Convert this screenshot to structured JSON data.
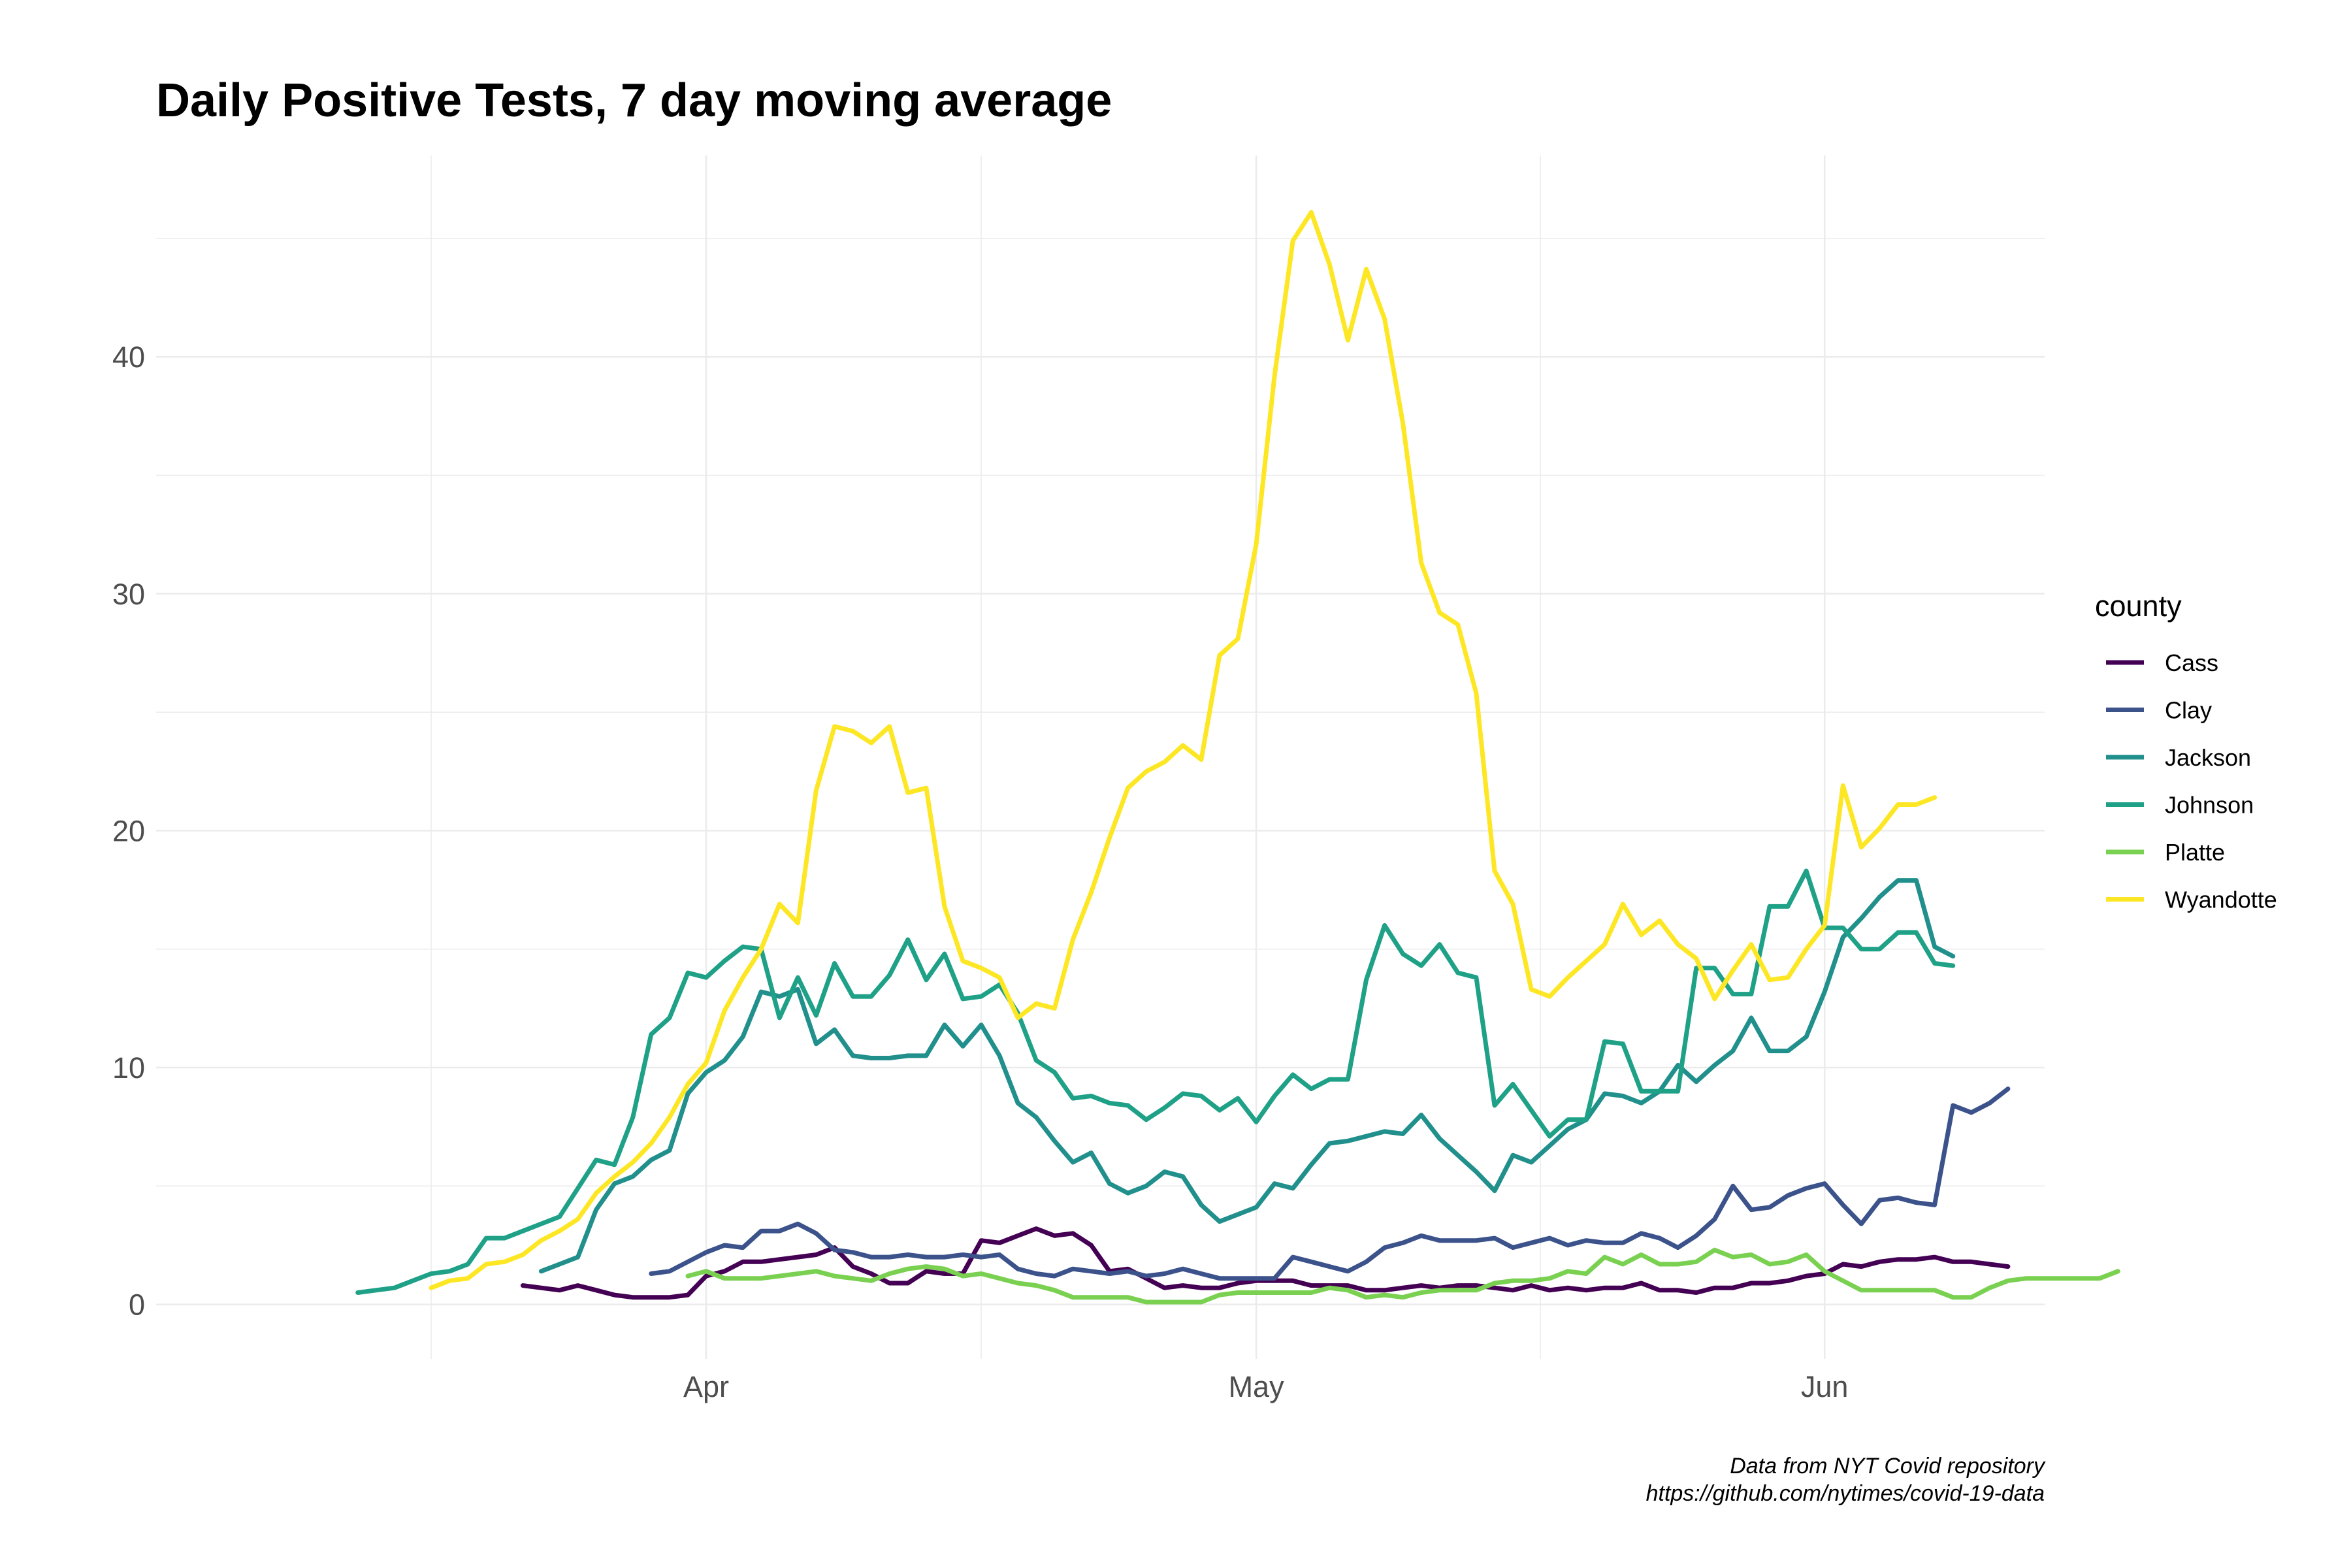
{
  "chart_data": {
    "type": "line",
    "title": "Daily Positive Tests, 7 day moving average",
    "xlabel": "",
    "ylabel": "",
    "x_axis": {
      "type": "date",
      "ticks": [
        {
          "date": "2020-04-01",
          "label": "Apr"
        },
        {
          "date": "2020-05-01",
          "label": "May"
        },
        {
          "date": "2020-06-01",
          "label": "Jun"
        }
      ],
      "range": [
        "2020-03-02",
        "2020-06-13"
      ]
    },
    "y_axis": {
      "ticks": [
        0,
        10,
        20,
        30,
        40
      ],
      "range": [
        -2.3,
        48.5
      ]
    },
    "grid": true,
    "legend": {
      "title": "county",
      "position": "right"
    },
    "series": [
      {
        "name": "Cass",
        "color": "#440154",
        "start": "2020-03-22",
        "values": [
          0.8,
          0.7,
          0.6,
          0.8,
          0.6,
          0.4,
          0.3,
          0.3,
          0.3,
          0.4,
          1.2,
          1.4,
          1.8,
          1.8,
          1.9,
          2.0,
          2.1,
          2.4,
          1.6,
          1.3,
          0.9,
          0.9,
          1.4,
          1.3,
          1.3,
          2.7,
          2.6,
          2.9,
          3.2,
          2.9,
          3.0,
          2.5,
          1.4,
          1.5,
          1.1,
          0.7,
          0.8,
          0.7,
          0.7,
          0.9,
          1.0,
          1.0,
          1.0,
          0.8,
          0.8,
          0.8,
          0.6,
          0.6,
          0.7,
          0.8,
          0.7,
          0.8,
          0.8,
          0.7,
          0.6,
          0.8,
          0.6,
          0.7,
          0.6,
          0.7,
          0.7,
          0.9,
          0.6,
          0.6,
          0.5,
          0.7,
          0.7,
          0.9,
          0.9,
          1.0,
          1.2,
          1.3,
          1.7,
          1.6,
          1.8,
          1.9,
          1.9,
          2.0,
          1.8,
          1.8,
          1.7,
          1.6
        ]
      },
      {
        "name": "Clay",
        "color": "#3b528b",
        "start": "2020-03-29",
        "values": [
          1.3,
          1.4,
          1.8,
          2.2,
          2.5,
          2.4,
          3.1,
          3.1,
          3.4,
          3.0,
          2.3,
          2.2,
          2.0,
          2.0,
          2.1,
          2.0,
          2.0,
          2.1,
          2.0,
          2.1,
          1.5,
          1.3,
          1.2,
          1.5,
          1.4,
          1.3,
          1.4,
          1.2,
          1.3,
          1.5,
          1.3,
          1.1,
          1.1,
          1.1,
          1.1,
          2.0,
          1.8,
          1.6,
          1.4,
          1.8,
          2.4,
          2.6,
          2.9,
          2.7,
          2.7,
          2.7,
          2.8,
          2.4,
          2.6,
          2.8,
          2.5,
          2.7,
          2.6,
          2.6,
          3.0,
          2.8,
          2.4,
          2.9,
          3.6,
          5.0,
          4.0,
          4.1,
          4.6,
          4.9,
          5.1,
          4.2,
          3.4,
          4.4,
          4.5,
          4.3,
          4.2,
          8.4,
          8.1,
          8.5,
          9.1
        ]
      },
      {
        "name": "Jackson",
        "color": "#21908c",
        "start": "2020-03-23",
        "values": [
          1.4,
          1.7,
          2.0,
          4.0,
          5.1,
          5.4,
          6.1,
          6.5,
          8.9,
          9.8,
          10.3,
          11.3,
          13.2,
          13.0,
          13.3,
          11.0,
          11.6,
          10.5,
          10.4,
          10.4,
          10.5,
          10.5,
          11.8,
          10.9,
          11.8,
          10.5,
          8.5,
          7.9,
          6.9,
          6.0,
          6.4,
          5.1,
          4.7,
          5.0,
          5.6,
          5.4,
          4.2,
          3.5,
          3.8,
          4.1,
          5.1,
          4.9,
          5.9,
          6.8,
          6.9,
          7.1,
          7.3,
          7.2,
          8.0,
          7.0,
          6.3,
          5.6,
          4.8,
          6.3,
          6.0,
          6.7,
          7.4,
          7.8,
          8.9,
          8.8,
          8.5,
          9.0,
          10.1,
          9.4,
          10.1,
          10.7,
          12.1,
          10.7,
          10.7,
          11.3,
          13.2,
          15.5,
          16.3,
          17.2,
          17.9,
          17.9,
          15.1,
          14.7
        ]
      },
      {
        "name": "Johnson",
        "color": "#1fa187",
        "start": "2020-03-13",
        "values": [
          0.5,
          0.6,
          0.7,
          1.0,
          1.3,
          1.4,
          1.7,
          2.8,
          2.8,
          3.1,
          3.4,
          3.7,
          4.9,
          6.1,
          5.9,
          7.9,
          11.4,
          12.1,
          14.0,
          13.8,
          14.5,
          15.1,
          15.0,
          12.1,
          13.8,
          12.2,
          14.4,
          13.0,
          13.0,
          13.9,
          15.4,
          13.7,
          14.8,
          12.9,
          13.0,
          13.5,
          12.3,
          10.3,
          9.8,
          8.7,
          8.8,
          8.5,
          8.4,
          7.8,
          8.3,
          8.9,
          8.8,
          8.2,
          8.7,
          7.7,
          8.8,
          9.7,
          9.1,
          9.5,
          9.5,
          13.7,
          16.0,
          14.8,
          14.3,
          15.2,
          14.0,
          13.8,
          8.4,
          9.3,
          8.2,
          7.1,
          7.8,
          7.8,
          11.1,
          11.0,
          9.0,
          9.0,
          9.0,
          14.2,
          14.2,
          13.1,
          13.1,
          16.8,
          16.8,
          18.3,
          15.9,
          15.9,
          15.0,
          15.0,
          15.7,
          15.7,
          14.4,
          14.3
        ]
      },
      {
        "name": "Platte",
        "color": "#7ad151",
        "start": "2020-03-31",
        "values": [
          1.2,
          1.4,
          1.1,
          1.1,
          1.1,
          1.2,
          1.3,
          1.4,
          1.2,
          1.1,
          1.0,
          1.3,
          1.5,
          1.6,
          1.5,
          1.2,
          1.3,
          1.1,
          0.9,
          0.8,
          0.6,
          0.3,
          0.3,
          0.3,
          0.3,
          0.1,
          0.1,
          0.1,
          0.1,
          0.4,
          0.5,
          0.5,
          0.5,
          0.5,
          0.5,
          0.7,
          0.6,
          0.3,
          0.4,
          0.3,
          0.5,
          0.6,
          0.6,
          0.6,
          0.9,
          1.0,
          1.0,
          1.1,
          1.4,
          1.3,
          2.0,
          1.7,
          2.1,
          1.7,
          1.7,
          1.8,
          2.3,
          2.0,
          2.1,
          1.7,
          1.8,
          2.1,
          1.4,
          1.0,
          0.6,
          0.6,
          0.6,
          0.6,
          0.6,
          0.3,
          0.3,
          0.7,
          1.0,
          1.1,
          1.1,
          1.1,
          1.1,
          1.1,
          1.4
        ]
      },
      {
        "name": "Wyandotte",
        "color": "#fde725",
        "start": "2020-03-17",
        "values": [
          0.7,
          1.0,
          1.1,
          1.7,
          1.8,
          2.1,
          2.7,
          3.1,
          3.6,
          4.7,
          5.4,
          6.0,
          6.8,
          7.9,
          9.3,
          10.2,
          12.4,
          13.8,
          15.0,
          16.9,
          16.1,
          21.7,
          24.4,
          24.2,
          23.7,
          24.4,
          21.6,
          21.8,
          16.8,
          14.5,
          14.2,
          13.8,
          12.1,
          12.7,
          12.5,
          15.4,
          17.4,
          19.7,
          21.8,
          22.5,
          22.9,
          23.6,
          23.0,
          27.4,
          28.1,
          32.1,
          39.2,
          44.9,
          46.1,
          43.9,
          40.7,
          43.7,
          41.6,
          37.2,
          31.3,
          29.2,
          28.7,
          25.8,
          18.3,
          16.9,
          13.3,
          13.0,
          13.8,
          14.5,
          15.2,
          16.9,
          15.6,
          16.2,
          15.2,
          14.6,
          12.9,
          14.1,
          15.2,
          13.7,
          13.8,
          15.0,
          16.0,
          21.9,
          19.3,
          20.1,
          21.1,
          21.1,
          21.4
        ]
      }
    ],
    "caption": [
      "Data from NYT Covid repository ",
      "https://github.com/nytimes/covid-19-data"
    ]
  }
}
